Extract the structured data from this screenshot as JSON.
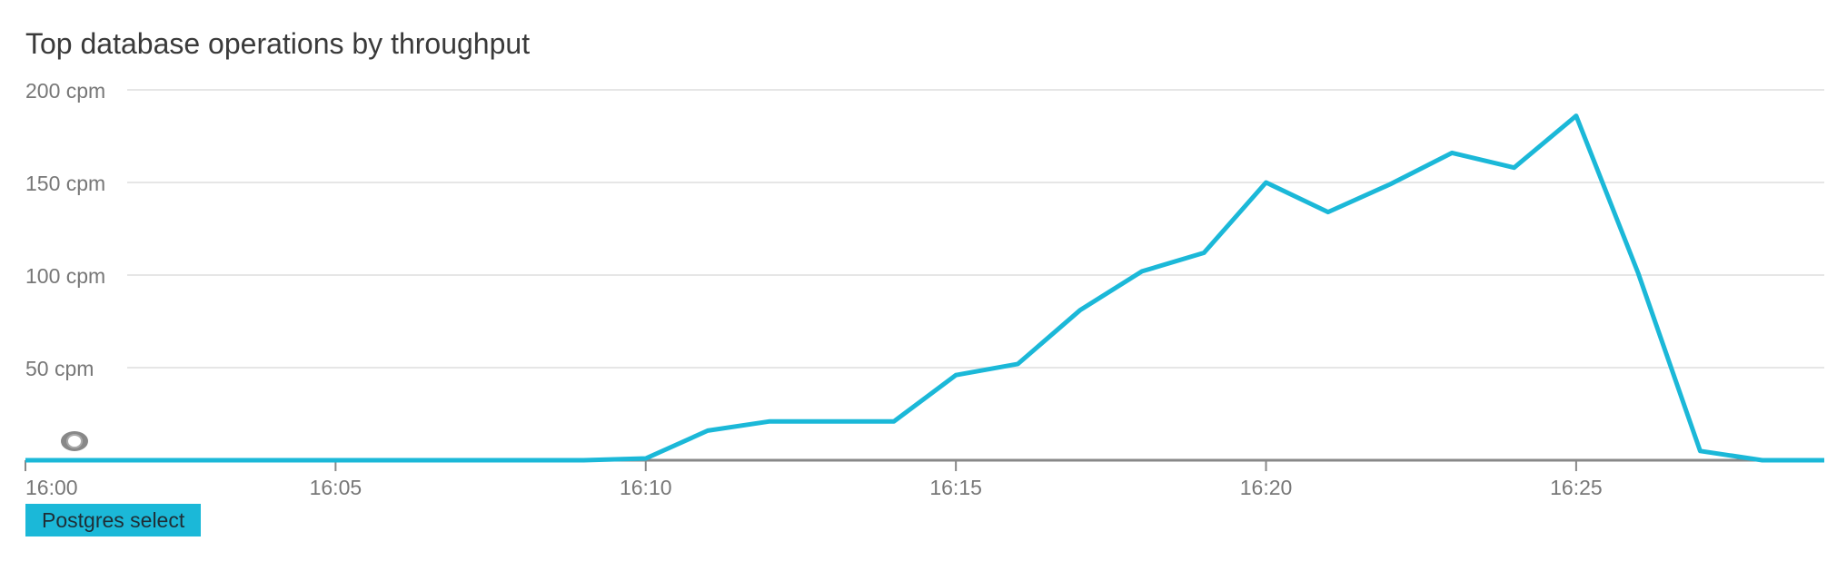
{
  "chart_data": {
    "type": "line",
    "title": "Top database operations by throughput",
    "xlabel": "",
    "ylabel": "",
    "y_ticks": [
      {
        "value": 50,
        "label": "50 cpm"
      },
      {
        "value": 100,
        "label": "100 cpm"
      },
      {
        "value": 150,
        "label": "150 cpm"
      },
      {
        "value": 200,
        "label": "200 cpm"
      }
    ],
    "x_ticks": [
      {
        "value": 0,
        "label": "16:00"
      },
      {
        "value": 5,
        "label": "16:05"
      },
      {
        "value": 10,
        "label": "16:10"
      },
      {
        "value": 15,
        "label": "16:15"
      },
      {
        "value": 20,
        "label": "16:20"
      },
      {
        "value": 25,
        "label": "16:25"
      }
    ],
    "xlim": [
      0,
      29
    ],
    "ylim": [
      0,
      200
    ],
    "grid": true,
    "legend_position": "bottom-left",
    "series": [
      {
        "name": "Postgres select",
        "color": "#1bb8d8",
        "x": [
          0,
          1,
          2,
          3,
          4,
          5,
          6,
          7,
          8,
          9,
          10,
          11,
          12,
          13,
          14,
          15,
          16,
          17,
          18,
          19,
          20,
          21,
          22,
          23,
          24,
          25,
          26,
          27,
          28,
          29
        ],
        "values": [
          0,
          0,
          0,
          0,
          0,
          0,
          0,
          0,
          0,
          0,
          1,
          16,
          21,
          21,
          21,
          46,
          52,
          81,
          102,
          112,
          150,
          134,
          149,
          166,
          158,
          186,
          101,
          5,
          0,
          0
        ]
      }
    ]
  },
  "colors": {
    "series": "#1bb8d8",
    "grid": "#e6e6e6",
    "axis": "#888888",
    "tick_text": "#777777",
    "title": "#3a3a3a"
  },
  "marker_icon": "eye-icon"
}
